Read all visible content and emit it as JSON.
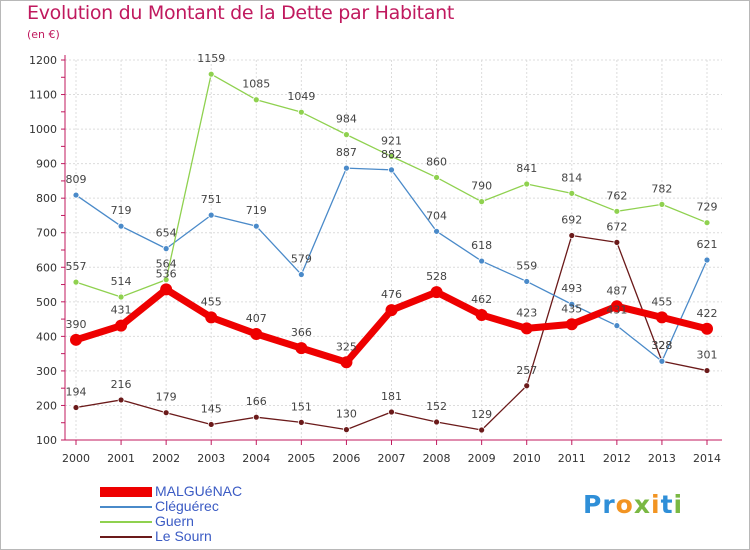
{
  "title": "Evolution du Montant de la Dette par Habitant",
  "subtitle": "(en €)",
  "logo": {
    "text": "Proxiti",
    "colors": [
      "#2f8fd8",
      "#7ab843",
      "#f29422"
    ]
  },
  "chart_data": {
    "type": "line",
    "title": "Evolution du Montant de la Dette par Habitant",
    "ylabel": "(en €)",
    "xlabel": "",
    "categories": [
      "2000",
      "2001",
      "2002",
      "2003",
      "2004",
      "2005",
      "2006",
      "2007",
      "2008",
      "2009",
      "2010",
      "2011",
      "2012",
      "2013",
      "2014"
    ],
    "ylim": [
      100,
      1200
    ],
    "yticks": [
      100,
      200,
      300,
      400,
      500,
      600,
      700,
      800,
      900,
      1000,
      1100,
      1200
    ],
    "grid": true,
    "legend": "bottom-left",
    "series": [
      {
        "name": "MALGUéNAC",
        "color": "#ee0000",
        "values": [
          390,
          431,
          536,
          455,
          407,
          366,
          325,
          476,
          528,
          462,
          423,
          435,
          487,
          455,
          422
        ]
      },
      {
        "name": "Cléguérec",
        "color": "#4a8ac9",
        "values": [
          809,
          719,
          654,
          751,
          719,
          579,
          887,
          882,
          704,
          618,
          559,
          493,
          431,
          328,
          621
        ]
      },
      {
        "name": "Guern",
        "color": "#8fd14f",
        "values": [
          557,
          514,
          564,
          1159,
          1085,
          1049,
          984,
          921,
          860,
          790,
          841,
          814,
          762,
          782,
          729
        ]
      },
      {
        "name": "Le Sourn",
        "color": "#6b1a1a",
        "values": [
          194,
          216,
          179,
          145,
          166,
          151,
          130,
          181,
          152,
          129,
          257,
          692,
          672,
          328,
          301
        ]
      }
    ]
  }
}
